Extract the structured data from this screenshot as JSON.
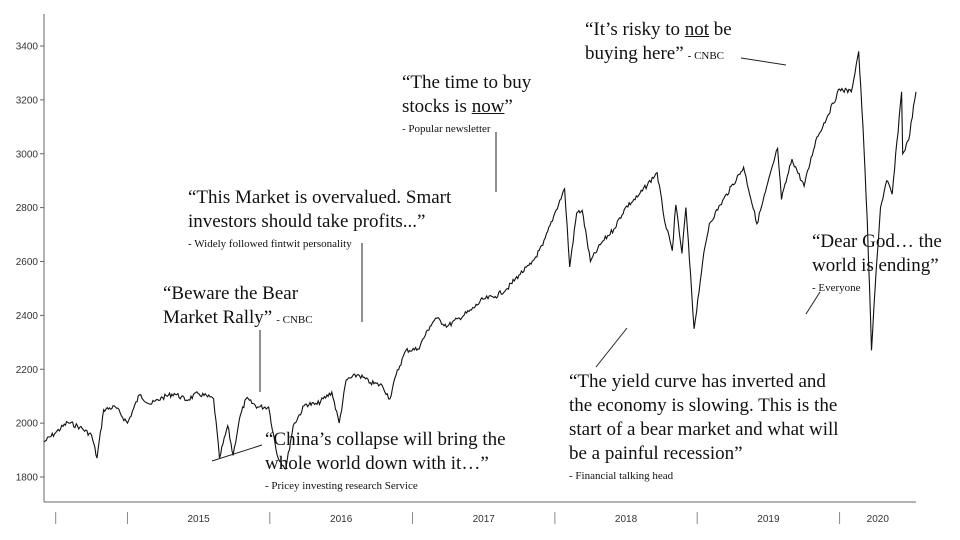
{
  "chart_data": {
    "type": "line",
    "title": "",
    "xlabel": "",
    "ylabel": "",
    "ylim": [
      1750,
      3450
    ],
    "y_ticks": [
      1800,
      2000,
      2200,
      2400,
      2600,
      2800,
      3000,
      3200,
      3400
    ],
    "x_range": [
      "2014-06-01",
      "2020-07-15"
    ],
    "year_labels": [
      "2015",
      "2016",
      "2017",
      "2018",
      "2019",
      "2020"
    ],
    "grid": false,
    "series": [
      {
        "x": [
          "2014-06-01",
          "2014-07-01",
          "2014-08-01",
          "2014-09-01",
          "2014-10-01",
          "2014-10-15",
          "2014-11-01",
          "2014-12-01",
          "2015-01-01",
          "2015-02-01",
          "2015-03-01",
          "2015-04-01",
          "2015-05-01",
          "2015-06-01",
          "2015-07-01",
          "2015-08-10",
          "2015-08-25",
          "2015-09-15",
          "2015-09-29",
          "2015-10-15",
          "2015-11-01",
          "2015-12-01",
          "2015-12-29",
          "2016-01-20",
          "2016-02-11",
          "2016-03-01",
          "2016-04-01",
          "2016-05-01",
          "2016-06-08",
          "2016-06-27",
          "2016-07-15",
          "2016-08-15",
          "2016-09-15",
          "2016-10-15",
          "2016-11-04",
          "2016-11-20",
          "2016-12-15",
          "2017-01-15",
          "2017-02-15",
          "2017-03-01",
          "2017-04-01",
          "2017-05-01",
          "2017-06-01",
          "2017-07-01",
          "2017-08-01",
          "2017-09-01",
          "2017-10-01",
          "2017-11-01",
          "2017-12-01",
          "2018-01-01",
          "2018-01-26",
          "2018-02-08",
          "2018-02-26",
          "2018-03-12",
          "2018-04-02",
          "2018-05-01",
          "2018-06-01",
          "2018-07-01",
          "2018-08-01",
          "2018-09-20",
          "2018-10-11",
          "2018-10-29",
          "2018-11-07",
          "2018-11-23",
          "2018-12-03",
          "2018-12-24",
          "2019-01-15",
          "2019-02-01",
          "2019-03-01",
          "2019-04-30",
          "2019-06-03",
          "2019-07-26",
          "2019-08-05",
          "2019-09-01",
          "2019-10-02",
          "2019-11-01",
          "2019-12-01",
          "2020-01-01",
          "2020-01-31",
          "2020-02-19",
          "2020-03-01",
          "2020-03-12",
          "2020-03-23",
          "2020-04-01",
          "2020-04-15",
          "2020-05-01",
          "2020-05-15",
          "2020-06-08",
          "2020-06-11",
          "2020-06-26",
          "2020-07-15"
        ],
        "values": [
          1930,
          1965,
          2003,
          1985,
          1955,
          1870,
          2050,
          2060,
          2000,
          2105,
          2070,
          2095,
          2110,
          2085,
          2110,
          2090,
          1870,
          1990,
          1880,
          2015,
          2090,
          2060,
          2060,
          1880,
          1830,
          1990,
          2070,
          2070,
          2115,
          2000,
          2160,
          2180,
          2150,
          2140,
          2090,
          2180,
          2270,
          2275,
          2360,
          2390,
          2360,
          2390,
          2420,
          2460,
          2470,
          2500,
          2550,
          2590,
          2660,
          2780,
          2870,
          2580,
          2780,
          2790,
          2600,
          2670,
          2720,
          2800,
          2840,
          2930,
          2740,
          2640,
          2810,
          2630,
          2800,
          2350,
          2600,
          2740,
          2810,
          2950,
          2740,
          3020,
          2830,
          2980,
          2880,
          3050,
          3140,
          3240,
          3230,
          3380,
          3100,
          2750,
          2270,
          2500,
          2800,
          2900,
          2850,
          3230,
          3000,
          3050,
          3230
        ]
      }
    ]
  },
  "annotations": [
    {
      "quote": "“Beware the Bear",
      "quote2": "Market Rally”",
      "source": "- CNBC"
    },
    {
      "quote": "“This Market is overvalued. Smart",
      "quote2": "investors should take profits...”",
      "source": "- Widely followed fintwit personality"
    },
    {
      "quote": "“The time to buy",
      "quote2_pre": "stocks is ",
      "quote2_u": "now",
      "quote2_post": "”",
      "source": "- Popular newsletter"
    },
    {
      "quote_pre": "“It’s risky to ",
      "quote_u": "not",
      "quote_post": " be",
      "quote2": "buying here”",
      "source": "- CNBC"
    },
    {
      "quote": "“China’s collapse will bring the",
      "quote2": "whole world down with it…”",
      "source": "- Pricey investing research Service"
    },
    {
      "quote": "“The yield curve has inverted and",
      "quote2": "the economy is slowing. This is the",
      "quote3": "start of a bear market and what will",
      "quote4": "be a painful recession”",
      "source": "- Financial talking head"
    },
    {
      "quote": "“Dear God… the",
      "quote2": "world is ending”",
      "source": "- Everyone"
    }
  ]
}
